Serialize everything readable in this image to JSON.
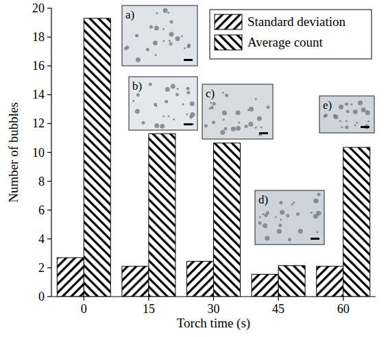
{
  "chart_data": {
    "type": "bar",
    "x_label": "Torch time (s)",
    "y_label": "Number of bubbles",
    "categories": [
      "0",
      "15",
      "30",
      "45",
      "60"
    ],
    "series": [
      {
        "name": "Standard deviation",
        "color": "#000000",
        "values": [
          2.7,
          2.1,
          2.45,
          1.55,
          2.1
        ]
      },
      {
        "name": "Average count",
        "color": "#000000",
        "values": [
          19.3,
          11.3,
          10.65,
          2.15,
          10.35
        ]
      }
    ],
    "ylim": [
      0,
      20
    ],
    "yticks": [
      0,
      2,
      4,
      6,
      8,
      10,
      12,
      14,
      16,
      18,
      20
    ],
    "grid": false,
    "legend": "upper right",
    "annotations": [
      "a)",
      "b)",
      "c)",
      "d)",
      "e)"
    ]
  }
}
